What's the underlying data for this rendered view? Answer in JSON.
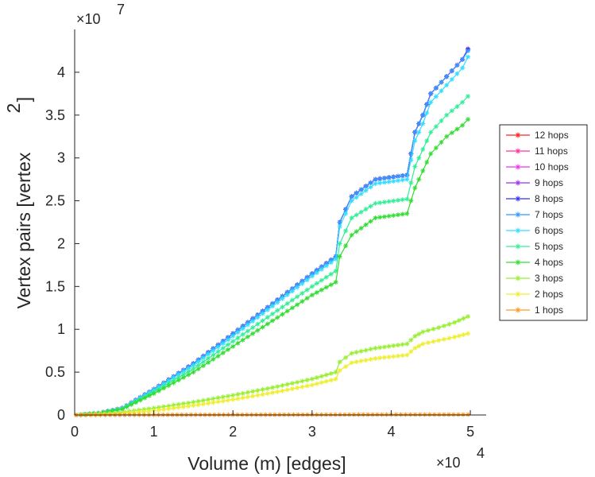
{
  "chart_data": {
    "type": "line",
    "title": "",
    "xlabel": "Volume (m) [edges]",
    "ylabel": "Vertex pairs [vertex",
    "ylabel_superscript": "2",
    "ylabel_close": "]",
    "x_exponent": "×10",
    "x_exponent_power": "4",
    "y_exponent": "×10",
    "y_exponent_power": "7",
    "xlim": [
      0,
      5.2
    ],
    "ylim": [
      0,
      4.5
    ],
    "x_ticks": [
      0,
      1,
      2,
      3,
      4,
      5
    ],
    "x_tick_labels": [
      "0",
      "1",
      "2",
      "3",
      "4",
      "5"
    ],
    "y_ticks": [
      0,
      0.5,
      1,
      1.5,
      2,
      2.5,
      3,
      3.5,
      4
    ],
    "y_tick_labels": [
      "0",
      "0.5",
      "1",
      "1.5",
      "2",
      "2.5",
      "3",
      "3.5",
      "4"
    ],
    "grid": false,
    "legend_position": "right",
    "series": [
      {
        "name": "12 hops",
        "color": "#ff2020",
        "x": [
          0.02,
          0.3,
          0.6,
          1.0,
          1.5,
          2.0,
          2.5,
          3.0,
          3.3,
          3.35,
          3.5,
          3.8,
          4.2,
          4.3,
          4.4,
          4.5,
          4.7,
          4.9,
          4.97
        ],
        "y": [
          0,
          0.02,
          0.08,
          0.3,
          0.6,
          0.95,
          1.3,
          1.65,
          1.85,
          2.25,
          2.55,
          2.75,
          2.8,
          3.3,
          3.5,
          3.75,
          3.95,
          4.15,
          4.27
        ]
      },
      {
        "name": "11 hops",
        "color": "#ff3399",
        "x": [
          0.02,
          0.3,
          0.6,
          1.0,
          1.5,
          2.0,
          2.5,
          3.0,
          3.3,
          3.35,
          3.5,
          3.8,
          4.2,
          4.3,
          4.4,
          4.5,
          4.7,
          4.9,
          4.97
        ],
        "y": [
          0,
          0.02,
          0.08,
          0.3,
          0.6,
          0.95,
          1.3,
          1.65,
          1.85,
          2.25,
          2.55,
          2.75,
          2.8,
          3.3,
          3.5,
          3.75,
          3.95,
          4.15,
          4.27
        ]
      },
      {
        "name": "10 hops",
        "color": "#ee33ee",
        "x": [
          0.02,
          0.3,
          0.6,
          1.0,
          1.5,
          2.0,
          2.5,
          3.0,
          3.3,
          3.35,
          3.5,
          3.8,
          4.2,
          4.3,
          4.4,
          4.5,
          4.7,
          4.9,
          4.97
        ],
        "y": [
          0,
          0.02,
          0.08,
          0.3,
          0.6,
          0.95,
          1.3,
          1.65,
          1.85,
          2.25,
          2.55,
          2.75,
          2.8,
          3.3,
          3.5,
          3.75,
          3.95,
          4.15,
          4.27
        ]
      },
      {
        "name": "9 hops",
        "color": "#9933ee",
        "x": [
          0.02,
          0.3,
          0.6,
          1.0,
          1.5,
          2.0,
          2.5,
          3.0,
          3.3,
          3.35,
          3.5,
          3.8,
          4.2,
          4.3,
          4.4,
          4.5,
          4.7,
          4.9,
          4.97
        ],
        "y": [
          0,
          0.02,
          0.08,
          0.3,
          0.6,
          0.95,
          1.3,
          1.65,
          1.85,
          2.25,
          2.55,
          2.75,
          2.8,
          3.3,
          3.5,
          3.75,
          3.95,
          4.15,
          4.27
        ]
      },
      {
        "name": "8 hops",
        "color": "#3333ee",
        "x": [
          0.02,
          0.3,
          0.6,
          1.0,
          1.5,
          2.0,
          2.5,
          3.0,
          3.3,
          3.35,
          3.5,
          3.8,
          4.2,
          4.3,
          4.4,
          4.5,
          4.7,
          4.9,
          4.97
        ],
        "y": [
          0,
          0.02,
          0.08,
          0.3,
          0.6,
          0.95,
          1.3,
          1.65,
          1.85,
          2.25,
          2.55,
          2.75,
          2.8,
          3.3,
          3.5,
          3.75,
          3.95,
          4.15,
          4.27
        ]
      },
      {
        "name": "7 hops",
        "color": "#3399ff",
        "x": [
          0.02,
          0.3,
          0.6,
          1.0,
          1.5,
          2.0,
          2.5,
          3.0,
          3.3,
          3.35,
          3.5,
          3.8,
          4.2,
          4.3,
          4.4,
          4.5,
          4.7,
          4.9,
          4.97
        ],
        "y": [
          0,
          0.02,
          0.08,
          0.3,
          0.6,
          0.95,
          1.3,
          1.65,
          1.85,
          2.25,
          2.55,
          2.75,
          2.8,
          3.3,
          3.5,
          3.75,
          3.95,
          4.15,
          4.25
        ]
      },
      {
        "name": "6 hops",
        "color": "#33ddff",
        "x": [
          0.02,
          0.3,
          0.6,
          1.0,
          1.5,
          2.0,
          2.5,
          3.0,
          3.3,
          3.35,
          3.5,
          3.8,
          4.2,
          4.3,
          4.4,
          4.5,
          4.7,
          4.9,
          4.97
        ],
        "y": [
          0,
          0.02,
          0.08,
          0.29,
          0.58,
          0.92,
          1.27,
          1.62,
          1.82,
          2.2,
          2.5,
          2.7,
          2.75,
          3.2,
          3.4,
          3.65,
          3.85,
          4.05,
          4.18
        ]
      },
      {
        "name": "5 hops",
        "color": "#33ee99",
        "x": [
          0.02,
          0.3,
          0.6,
          1.0,
          1.5,
          2.0,
          2.5,
          3.0,
          3.3,
          3.35,
          3.5,
          3.8,
          4.2,
          4.3,
          4.4,
          4.5,
          4.7,
          4.9,
          4.97
        ],
        "y": [
          0,
          0.02,
          0.07,
          0.27,
          0.54,
          0.86,
          1.18,
          1.5,
          1.68,
          2.0,
          2.3,
          2.47,
          2.52,
          2.9,
          3.1,
          3.3,
          3.5,
          3.65,
          3.72
        ]
      },
      {
        "name": "4 hops",
        "color": "#33dd33",
        "x": [
          0.02,
          0.3,
          0.6,
          1.0,
          1.5,
          2.0,
          2.5,
          3.0,
          3.3,
          3.35,
          3.5,
          3.8,
          4.2,
          4.3,
          4.4,
          4.5,
          4.7,
          4.9,
          4.97
        ],
        "y": [
          0,
          0.02,
          0.07,
          0.25,
          0.5,
          0.8,
          1.1,
          1.4,
          1.55,
          1.85,
          2.1,
          2.3,
          2.35,
          2.65,
          2.85,
          3.05,
          3.25,
          3.38,
          3.45
        ]
      },
      {
        "name": "3 hops",
        "color": "#99ee33",
        "x": [
          0.02,
          0.5,
          1.0,
          1.5,
          2.0,
          2.5,
          3.0,
          3.3,
          3.35,
          3.5,
          3.8,
          4.2,
          4.3,
          4.4,
          4.6,
          4.8,
          4.97
        ],
        "y": [
          0,
          0.02,
          0.08,
          0.15,
          0.23,
          0.32,
          0.42,
          0.5,
          0.62,
          0.72,
          0.78,
          0.83,
          0.92,
          0.97,
          1.02,
          1.08,
          1.15
        ]
      },
      {
        "name": "2 hops",
        "color": "#eeee33",
        "x": [
          0.02,
          0.5,
          1.0,
          1.5,
          2.0,
          2.5,
          3.0,
          3.3,
          3.35,
          3.5,
          3.8,
          4.2,
          4.3,
          4.4,
          4.6,
          4.8,
          4.97
        ],
        "y": [
          0,
          0.01,
          0.05,
          0.11,
          0.18,
          0.26,
          0.35,
          0.42,
          0.52,
          0.61,
          0.66,
          0.7,
          0.78,
          0.83,
          0.87,
          0.91,
          0.95
        ]
      },
      {
        "name": "1 hops",
        "color": "#ff9922",
        "x": [
          0.02,
          1.0,
          2.0,
          3.0,
          4.0,
          4.97
        ],
        "y": [
          0,
          0.002,
          0.003,
          0.004,
          0.005,
          0.005
        ]
      }
    ]
  }
}
